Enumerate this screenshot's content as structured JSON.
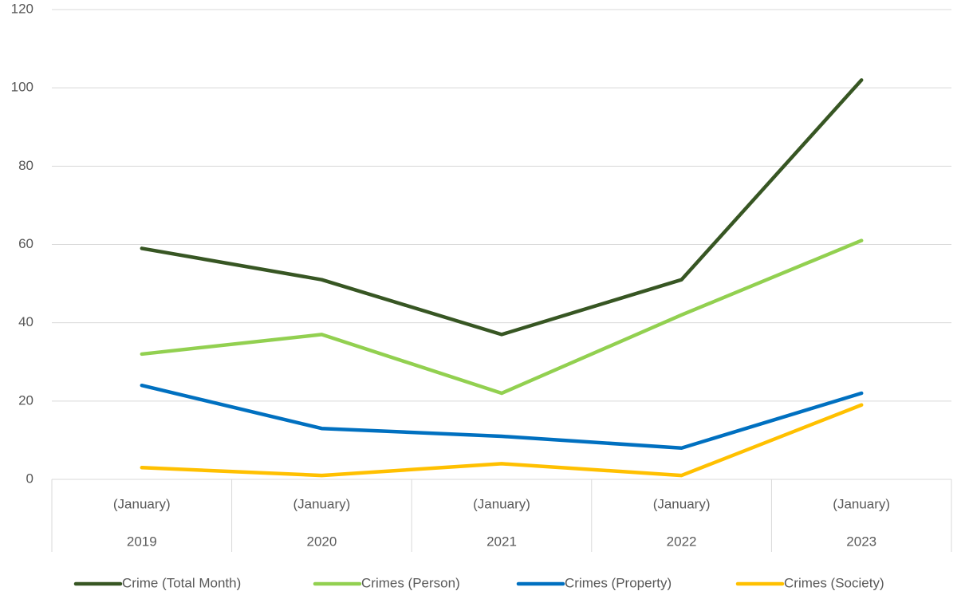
{
  "chart_data": {
    "type": "line",
    "categories": [
      [
        "(January)",
        "2019"
      ],
      [
        "(January)",
        "2020"
      ],
      [
        "(January)",
        "2021"
      ],
      [
        "(January)",
        "2022"
      ],
      [
        "(January)",
        "2023"
      ]
    ],
    "series": [
      {
        "name": "Crime (Total Month)",
        "color": "#375623",
        "values": [
          59,
          51,
          37,
          51,
          102
        ]
      },
      {
        "name": "Crimes (Person)",
        "color": "#92d050",
        "values": [
          32,
          37,
          22,
          42,
          61
        ]
      },
      {
        "name": "Crimes (Property)",
        "color": "#0070c0",
        "values": [
          24,
          13,
          11,
          8,
          22
        ]
      },
      {
        "name": "Crimes (Society)",
        "color": "#ffc000",
        "values": [
          3,
          1,
          4,
          1,
          19
        ]
      }
    ],
    "ylim": [
      0,
      120
    ],
    "yticks": [
      0,
      20,
      40,
      60,
      80,
      100,
      120
    ],
    "grid": true,
    "legend": "bottom"
  }
}
